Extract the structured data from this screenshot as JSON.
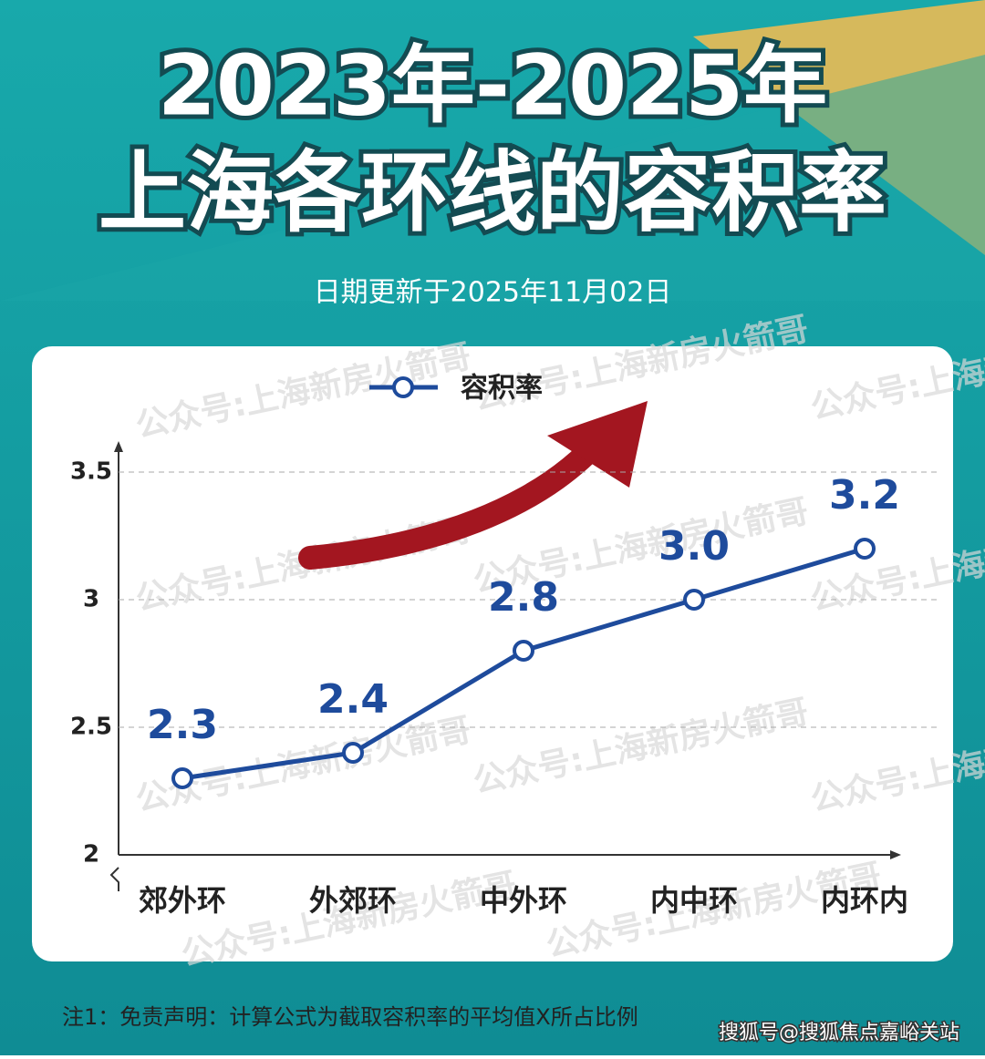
{
  "chart_data": {
    "type": "line",
    "title": [
      "2023年-2025年",
      "上海各环线的容积率"
    ],
    "subtitle": "日期更新于2025年11月02日",
    "categories": [
      "郊外环",
      "外郊环",
      "中外环",
      "内中环",
      "内环内"
    ],
    "series": [
      {
        "name": "容积率",
        "color": "#1e4b9c",
        "values": [
          2.3,
          2.4,
          2.8,
          3.0,
          3.2
        ],
        "value_labels": [
          "2.3",
          "2.4",
          "2.8",
          "3.0",
          "3.2"
        ]
      }
    ],
    "ylim": [
      2,
      3.6
    ],
    "yticks": [
      2,
      2.5,
      3,
      3.5
    ],
    "grid": true,
    "watermark": "公众号:上海新房火箭哥",
    "footnote": "注1：免责声明：计算公式为截取容积率的平均值X所占比例",
    "source": "搜狐号@搜狐焦点嘉峪关站"
  }
}
